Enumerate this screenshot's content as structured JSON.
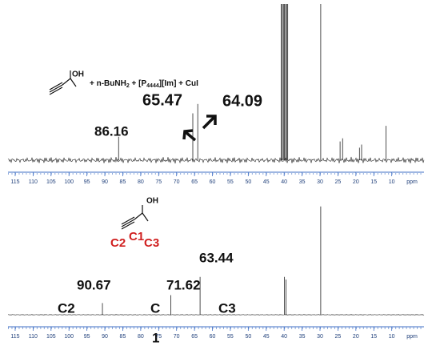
{
  "chart_data": [
    {
      "type": "spectrum",
      "reactant_label": "OH",
      "caption": [
        "+ n-BuNH",
        "2",
        " + [P",
        "4444",
        "][Im] + CuI"
      ],
      "labeled_peaks": {
        "x": [
          86.16,
          65.47,
          64.09
        ],
        "values": [
          15,
          30,
          36
        ]
      },
      "other_peaks": {
        "x": [
          40.8,
          40.5,
          40.2,
          39.9,
          39.6,
          39.3,
          39.0,
          29.8,
          24.4,
          23.7,
          19.0,
          18.4,
          11.6
        ],
        "values": [
          100,
          100,
          100,
          100,
          100,
          100,
          100,
          100,
          12,
          14,
          8,
          10,
          22
        ]
      },
      "xlim": [
        117,
        1
      ],
      "ylim": [
        0,
        100
      ],
      "xticks": [
        115,
        110,
        105,
        100,
        95,
        90,
        85,
        80,
        75,
        70,
        65,
        60,
        55,
        50,
        45,
        40,
        35,
        30,
        25,
        20,
        15,
        10
      ],
      "x_label": "ppm"
    },
    {
      "type": "spectrum",
      "reactant_label": "OH",
      "atom_labels": [
        "C2",
        "C1",
        "C3"
      ],
      "labeled_peaks": {
        "x": [
          90.67,
          71.62,
          63.44
        ],
        "values": [
          9,
          15,
          29
        ]
      },
      "peak_assignments": [
        "C2",
        "C",
        "C3"
      ],
      "other_peaks": {
        "x": [
          39.9,
          39.5,
          29.8
        ],
        "values": [
          29,
          27,
          83
        ]
      },
      "compound_label": "1",
      "xlim": [
        117,
        1
      ],
      "ylim": [
        0,
        100
      ],
      "xticks": [
        115,
        110,
        105,
        100,
        95,
        90,
        85,
        80,
        75,
        70,
        65,
        60,
        55,
        50,
        45,
        40,
        35,
        30,
        25,
        20,
        15,
        10
      ],
      "x_label": "ppm"
    }
  ]
}
